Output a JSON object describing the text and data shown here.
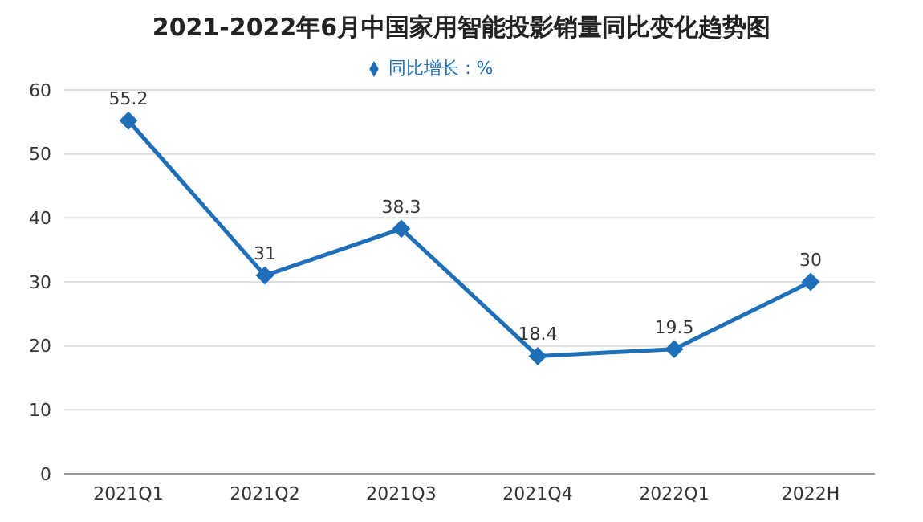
{
  "chart_data": {
    "type": "line",
    "title": "2021-2022年6月中国家用智能投影销量同比变化趋势图",
    "categories": [
      "2021Q1",
      "2021Q2",
      "2021Q3",
      "2021Q4",
      "2022Q1",
      "2022H"
    ],
    "series": [
      {
        "name": "同比增长：%",
        "color": "#1f6fb8",
        "values": [
          55.2,
          31,
          38.3,
          18.4,
          19.5,
          30
        ]
      }
    ],
    "ylim": [
      0,
      60
    ],
    "yticks": [
      0,
      10,
      20,
      30,
      40,
      50,
      60
    ],
    "grid": "y",
    "legend": "top",
    "marker": "diamond",
    "line_style": "solid",
    "data_labels": true
  }
}
